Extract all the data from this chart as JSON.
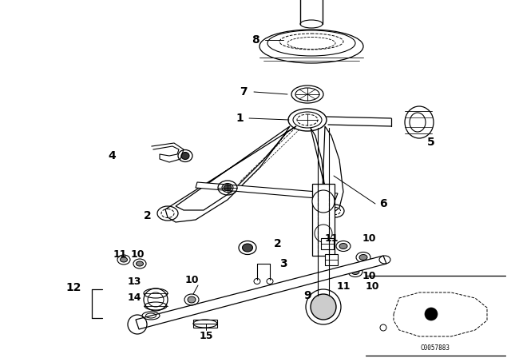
{
  "bg_color": "#ffffff",
  "diagram_color": "#000000",
  "diagram_code": "C0057883",
  "figsize": [
    6.4,
    4.48
  ],
  "dpi": 100
}
